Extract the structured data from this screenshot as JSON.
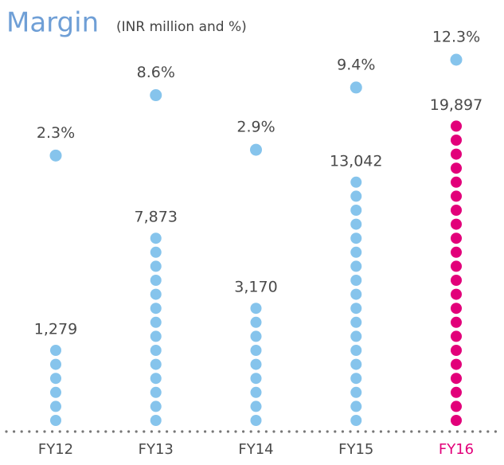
{
  "chart_data": {
    "type": "dot-column",
    "title": "Margin",
    "subtitle": "(INR million and %)",
    "categories": [
      "FY12",
      "FY13",
      "FY14",
      "FY15",
      "FY16"
    ],
    "values": [
      1279,
      7873,
      3170,
      13042,
      19897
    ],
    "value_labels": [
      "1,279",
      "7,873",
      "3,170",
      "13,042",
      "19,897"
    ],
    "colors": [
      "#86c4ec",
      "#86c4ec",
      "#86c4ec",
      "#86c4ec",
      "#e2007a"
    ],
    "label_colors": [
      "#4a4a4a",
      "#4a4a4a",
      "#4a4a4a",
      "#4a4a4a",
      "#e2007a"
    ],
    "margin": {
      "values": [
        2.3,
        8.6,
        2.9,
        9.4,
        12.3
      ],
      "value_labels": [
        "2.3%",
        "8.6%",
        "2.9%",
        "9.4%",
        "12.3%"
      ],
      "color": "#86c4ec"
    },
    "title_color": "#6f9fd6"
  }
}
